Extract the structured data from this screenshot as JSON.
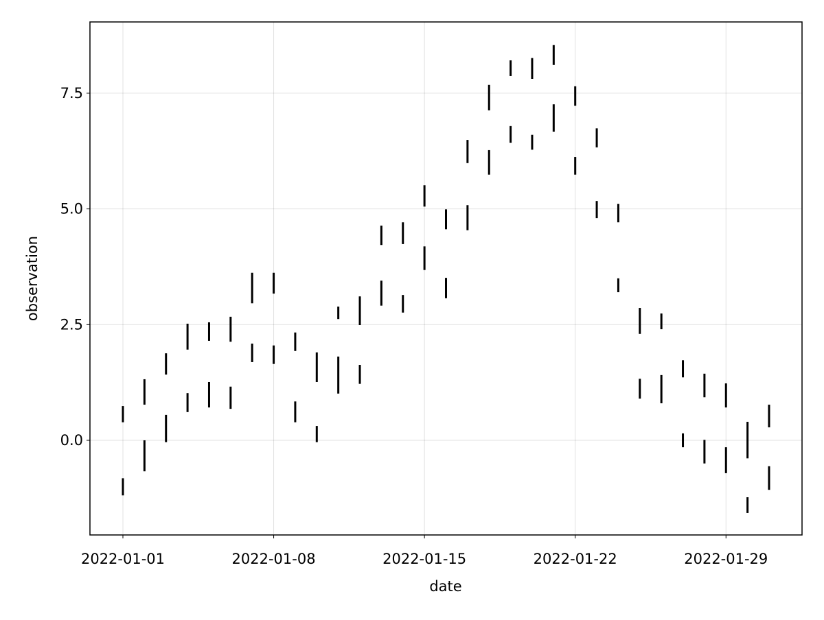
{
  "chart_data": {
    "type": "rangebar",
    "x_label": "date",
    "y_label": "observation",
    "x": [
      "2022-01-01",
      "2022-01-02",
      "2022-01-03",
      "2022-01-04",
      "2022-01-05",
      "2022-01-06",
      "2022-01-07",
      "2022-01-08",
      "2022-01-09",
      "2022-01-10",
      "2022-01-11",
      "2022-01-12",
      "2022-01-13",
      "2022-01-14",
      "2022-01-15",
      "2022-01-16",
      "2022-01-17",
      "2022-01-18",
      "2022-01-19",
      "2022-01-20",
      "2022-01-21",
      "2022-01-22",
      "2022-01-23",
      "2022-01-24",
      "2022-01-25",
      "2022-01-26",
      "2022-01-27",
      "2022-01-28",
      "2022-01-29",
      "2022-01-30",
      "2022-01-31"
    ],
    "series": [
      {
        "color": "#000000",
        "low": [
          0.39,
          0.77,
          1.42,
          1.96,
          2.15,
          2.13,
          2.96,
          3.17,
          1.93,
          1.26,
          2.62,
          2.49,
          4.22,
          4.24,
          5.05,
          4.56,
          5.99,
          7.13,
          7.87,
          7.81,
          8.11,
          7.23,
          6.33,
          4.71,
          2.3,
          2.4,
          1.36,
          0.93,
          0.71,
          -0.39,
          0.28
        ],
        "high": [
          0.74,
          1.32,
          1.88,
          2.52,
          2.55,
          2.67,
          3.62,
          3.62,
          2.33,
          1.9,
          2.89,
          3.11,
          4.64,
          4.71,
          5.51,
          4.99,
          6.49,
          7.68,
          8.21,
          8.26,
          8.54,
          7.65,
          6.74,
          5.11,
          2.86,
          2.74,
          1.73,
          1.44,
          1.23,
          0.4,
          0.77
        ]
      },
      {
        "color": "#000000",
        "low": [
          -1.19,
          -0.67,
          -0.04,
          0.61,
          0.71,
          0.68,
          1.69,
          1.65,
          0.39,
          -0.04,
          1.01,
          1.22,
          2.91,
          2.76,
          3.68,
          3.07,
          4.54,
          5.74,
          6.43,
          6.28,
          6.67,
          5.74,
          4.8,
          3.2,
          0.9,
          0.8,
          -0.15,
          -0.5,
          -0.71,
          -1.57,
          -1.07
        ],
        "high": [
          -0.82,
          0.0,
          0.55,
          1.02,
          1.26,
          1.16,
          2.09,
          2.05,
          0.84,
          0.31,
          1.81,
          1.63,
          3.45,
          3.14,
          4.19,
          3.51,
          5.08,
          6.27,
          6.79,
          6.6,
          7.26,
          6.12,
          5.17,
          3.5,
          1.33,
          1.41,
          0.15,
          0.01,
          -0.15,
          -1.23,
          -0.56
        ]
      }
    ],
    "xticks": [
      "2022-01-01",
      "2022-01-08",
      "2022-01-15",
      "2022-01-22",
      "2022-01-29"
    ],
    "ylim": [
      -2.045,
      9.04
    ],
    "yticks": [
      {
        "value": 0,
        "label": "0.0"
      },
      2.5,
      {
        "value": 5,
        "label": "5.0"
      },
      7.5
    ],
    "grid": true
  }
}
